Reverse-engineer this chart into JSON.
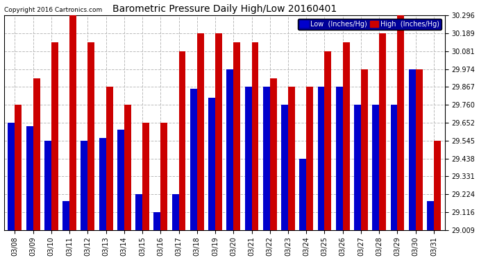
{
  "title": "Barometric Pressure Daily High/Low 20160401",
  "copyright": "Copyright 2016 Cartronics.com",
  "dates": [
    "03/08",
    "03/09",
    "03/10",
    "03/11",
    "03/12",
    "03/13",
    "03/14",
    "03/15",
    "03/16",
    "03/17",
    "03/18",
    "03/19",
    "03/20",
    "03/21",
    "03/22",
    "03/23",
    "03/24",
    "03/25",
    "03/26",
    "03/27",
    "03/28",
    "03/29",
    "03/30",
    "03/31"
  ],
  "low_values": [
    29.652,
    29.631,
    29.545,
    29.181,
    29.545,
    29.56,
    29.609,
    29.224,
    29.116,
    29.224,
    29.856,
    29.802,
    29.974,
    29.867,
    29.867,
    29.76,
    29.438,
    29.867,
    29.867,
    29.76,
    29.76,
    29.76,
    29.974,
    29.181
  ],
  "high_values": [
    29.76,
    29.92,
    30.135,
    30.296,
    30.135,
    29.867,
    29.76,
    29.652,
    29.652,
    30.081,
    30.189,
    30.189,
    30.135,
    30.135,
    29.92,
    29.867,
    29.867,
    30.081,
    30.135,
    29.974,
    30.189,
    30.296,
    29.974,
    29.545
  ],
  "ylim": [
    29.009,
    30.296
  ],
  "ymin": 29.009,
  "yticks": [
    29.009,
    29.116,
    29.224,
    29.331,
    29.438,
    29.545,
    29.652,
    29.76,
    29.867,
    29.974,
    30.081,
    30.189,
    30.296
  ],
  "bar_width": 0.38,
  "low_color": "#0000cc",
  "high_color": "#cc0000",
  "background_color": "#ffffff",
  "grid_color": "#bbbbbb",
  "title_fontsize": 10,
  "tick_fontsize": 7,
  "legend_low_label": "Low  (Inches/Hg)",
  "legend_high_label": "High  (Inches/Hg)",
  "legend_bg_color": "#000099"
}
